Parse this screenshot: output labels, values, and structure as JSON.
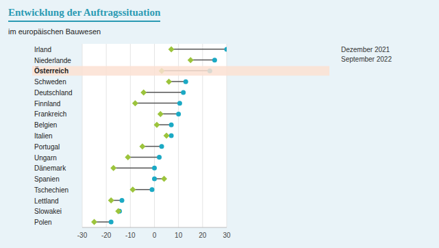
{
  "chart_data": {
    "type": "dumbbell",
    "title": "Entwicklung der Auftragssituation",
    "subtitle": "im europäischen Bauwesen",
    "orientation": "horizontal",
    "categories": [
      "Irland",
      "Niederlande",
      "Österreich",
      "Schweden",
      "Deutschland",
      "Finnland",
      "Frankreich",
      "Belgien",
      "Italien",
      "Portugal",
      "Ungarn",
      "Dänemark",
      "Spanien",
      "Tschechien",
      "Lettland",
      "Slowakei",
      "Polen"
    ],
    "series": [
      {
        "name": "Dezember 2021",
        "color": "#1ba9c4",
        "marker": "circle",
        "values": [
          30,
          25,
          23,
          13,
          12,
          10.5,
          10,
          7,
          7,
          3,
          2,
          0,
          0,
          -1,
          -13.5,
          -14.5,
          -18
        ]
      },
      {
        "name": "September 2022",
        "color": "#9cc43c",
        "marker": "diamond",
        "values": [
          7,
          15,
          3,
          6,
          -4.5,
          -8,
          2.5,
          1,
          5,
          -5,
          -11,
          -17,
          4,
          -9,
          -18,
          -15,
          -25
        ]
      }
    ],
    "xlim": [
      -30,
      30
    ],
    "xticks": [
      -30,
      -20,
      -10,
      0,
      10,
      20,
      30
    ],
    "grid": true,
    "legend": "upper right"
  }
}
